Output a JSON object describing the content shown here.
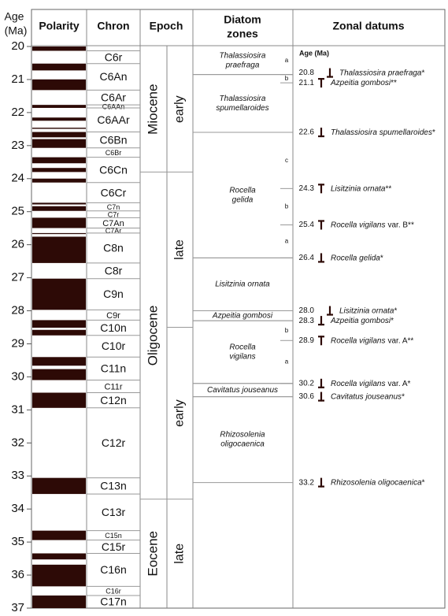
{
  "header": {
    "age": [
      "Age",
      "(Ma)"
    ],
    "polarity": "Polarity",
    "chron": "Chron",
    "epoch": "Epoch",
    "zones": [
      "Diatom",
      "zones"
    ],
    "datums": "Zonal datums",
    "datum_age": "Age (Ma)"
  },
  "age_axis": {
    "lim": [
      20,
      37
    ],
    "ticks": [
      20,
      21,
      22,
      23,
      24,
      25,
      26,
      27,
      28,
      29,
      30,
      31,
      32,
      33,
      34,
      35,
      36,
      37
    ]
  },
  "polarity_normal": [
    [
      20,
      20.131
    ],
    [
      20.518,
      20.725
    ],
    [
      20.996,
      21.32
    ],
    [
      21.768,
      21.859
    ],
    [
      22.151,
      22.248
    ],
    [
      22.459,
      22.493
    ],
    [
      22.588,
      22.75
    ],
    [
      22.804,
      23.069
    ],
    [
      23.353,
      23.535
    ],
    [
      23.677,
      23.8
    ],
    [
      23.999,
      24.118
    ],
    [
      24.73,
      24.781
    ],
    [
      24.835,
      24.977
    ],
    [
      25.183,
      25.496
    ],
    [
      25.648,
      25.678
    ],
    [
      25.757,
      26.554
    ],
    [
      27.027,
      27.972
    ],
    [
      28.283,
      28.512
    ],
    [
      28.578,
      28.745
    ],
    [
      29.401,
      29.662
    ],
    [
      29.765,
      30.098
    ],
    [
      30.479,
      30.939
    ],
    [
      33.058,
      33.545
    ],
    [
      34.655,
      34.94
    ],
    [
      35.343,
      35.526
    ],
    [
      35.685,
      36.341
    ],
    [
      36.618,
      37
    ]
  ],
  "chrons": [
    {
      "label": "C6r",
      "top": 20.131,
      "base": 20.518
    },
    {
      "label": "C6An",
      "top": 20.518,
      "base": 21.32
    },
    {
      "label": "C6Ar",
      "top": 21.32,
      "base": 21.768
    },
    {
      "label": "C6AAn",
      "top": 21.768,
      "base": 21.859
    },
    {
      "label": "C6AAr",
      "top": 21.859,
      "base": 22.588
    },
    {
      "label": "C6Bn",
      "top": 22.588,
      "base": 23.069
    },
    {
      "label": "C6Br",
      "top": 23.069,
      "base": 23.353
    },
    {
      "label": "C6Cn",
      "top": 23.353,
      "base": 24.118
    },
    {
      "label": "C6Cr",
      "top": 24.118,
      "base": 24.73
    },
    {
      "label": "C7n",
      "top": 24.73,
      "base": 24.977
    },
    {
      "label": "C7r",
      "top": 24.977,
      "base": 25.183
    },
    {
      "label": "C7An",
      "top": 25.183,
      "base": 25.496
    },
    {
      "label": "C7Ar",
      "top": 25.496,
      "base": 25.648
    },
    {
      "label": "C8n",
      "top": 25.648,
      "base": 26.554
    },
    {
      "label": "C8r",
      "top": 26.554,
      "base": 27.027
    },
    {
      "label": "C9n",
      "top": 27.027,
      "base": 27.972
    },
    {
      "label": "C9r",
      "top": 27.972,
      "base": 28.283
    },
    {
      "label": "C10n",
      "top": 28.283,
      "base": 28.745
    },
    {
      "label": "C10r",
      "top": 28.745,
      "base": 29.401
    },
    {
      "label": "C11n",
      "top": 29.401,
      "base": 30.098
    },
    {
      "label": "C11r",
      "top": 30.098,
      "base": 30.479
    },
    {
      "label": "C12n",
      "top": 30.479,
      "base": 30.939
    },
    {
      "label": "C12r",
      "top": 30.939,
      "base": 33.058
    },
    {
      "label": "C13n",
      "top": 33.058,
      "base": 33.545
    },
    {
      "label": "C13r",
      "top": 33.545,
      "base": 34.655
    },
    {
      "label": "C15n",
      "top": 34.655,
      "base": 34.94
    },
    {
      "label": "C15r",
      "top": 34.94,
      "base": 35.343
    },
    {
      "label": "C16n",
      "top": 35.343,
      "base": 36.341
    },
    {
      "label": "C16r",
      "top": 36.341,
      "base": 36.618
    },
    {
      "label": "C17n",
      "top": 36.618,
      "base": 37
    }
  ],
  "epochs": [
    {
      "label": "Miocene",
      "top": 20,
      "base": 23.8
    },
    {
      "label": "Oligocene",
      "top": 23.8,
      "base": 33.7
    },
    {
      "label": "Eocene",
      "top": 33.7,
      "base": 37
    }
  ],
  "subepochs": [
    {
      "label": "early",
      "top": 20,
      "base": 23.8
    },
    {
      "label": "late",
      "top": 23.8,
      "base": 28.5
    },
    {
      "label": "early",
      "top": 28.5,
      "base": 33.7
    },
    {
      "label": "late",
      "top": 33.7,
      "base": 37
    }
  ],
  "zones": [
    {
      "lines": [
        "Thalassiosira",
        "praefraga"
      ],
      "top": 20,
      "base": 20.85
    },
    {
      "lines": [
        "Thalassiosira",
        "spumellaroides"
      ],
      "top": 20.85,
      "base": 22.6
    },
    {
      "lines": [
        "Rocella",
        "gelida"
      ],
      "top": 22.6,
      "base": 26.4
    },
    {
      "lines": [
        "Lisitzinia ornata"
      ],
      "top": 26.4,
      "base": 28.0
    },
    {
      "lines": [
        "Azpeitia gombosi"
      ],
      "top": 28.0,
      "base": 28.3
    },
    {
      "lines": [
        "Rocella",
        "vigilans"
      ],
      "top": 28.3,
      "base": 30.2
    },
    {
      "lines": [
        "Cavitatus jouseanus"
      ],
      "top": 30.2,
      "base": 30.6
    },
    {
      "lines": [
        "Rhizosolenia",
        "oligocaenica"
      ],
      "top": 30.6,
      "base": 33.2
    }
  ],
  "subzones": [
    {
      "label": "a",
      "top": 20,
      "base": 20.85
    },
    {
      "label": "b",
      "top": 20.85,
      "base": 21.1
    },
    {
      "label": "c",
      "top": 22.6,
      "base": 24.3
    },
    {
      "label": "b",
      "top": 24.3,
      "base": 25.4
    },
    {
      "label": "a",
      "top": 25.4,
      "base": 26.4
    },
    {
      "label": "b",
      "top": 28.3,
      "base": 28.9
    },
    {
      "label": "a",
      "top": 28.9,
      "base": 30.2
    }
  ],
  "datums": [
    {
      "age": 20.8,
      "marker": "bottom",
      "name": "Thalassiosira praefraga",
      "suffix": "*"
    },
    {
      "age": 21.1,
      "marker": "top",
      "name": "Azpeitia gombosi",
      "suffix": "**"
    },
    {
      "age": 22.6,
      "marker": "bottom",
      "name": "Thalassiosira spumellaroides",
      "suffix": "*"
    },
    {
      "age": 24.3,
      "marker": "top",
      "name": "Lisitzinia ornata",
      "suffix": "**"
    },
    {
      "age": 25.4,
      "marker": "top",
      "name": "Rocella vigilans",
      "suffix": "var. B**"
    },
    {
      "age": 26.4,
      "marker": "bottom",
      "name": "Rocella gelida",
      "suffix": "*"
    },
    {
      "age": {
        "value": 28,
        "label": "28.0"
      },
      "marker": "bottom",
      "name": "Lisitzinia ornata",
      "suffix": "*"
    },
    {
      "age": 28.3,
      "marker": "bottom",
      "name": "Azpeitia gombosi",
      "suffix": "*"
    },
    {
      "age": 28.9,
      "marker": "top",
      "name": "Rocella vigilans",
      "suffix": "var. A**"
    },
    {
      "age": 30.2,
      "marker": "bottom",
      "name": "Rocella vigilans",
      "suffix": "var. A*"
    },
    {
      "age": 30.6,
      "marker": "bottom",
      "name": "Cavitatus jouseanus",
      "suffix": "*"
    },
    {
      "age": 33.2,
      "marker": "bottom",
      "name": "Rhizosolenia oligocaenica",
      "suffix": "*"
    }
  ]
}
